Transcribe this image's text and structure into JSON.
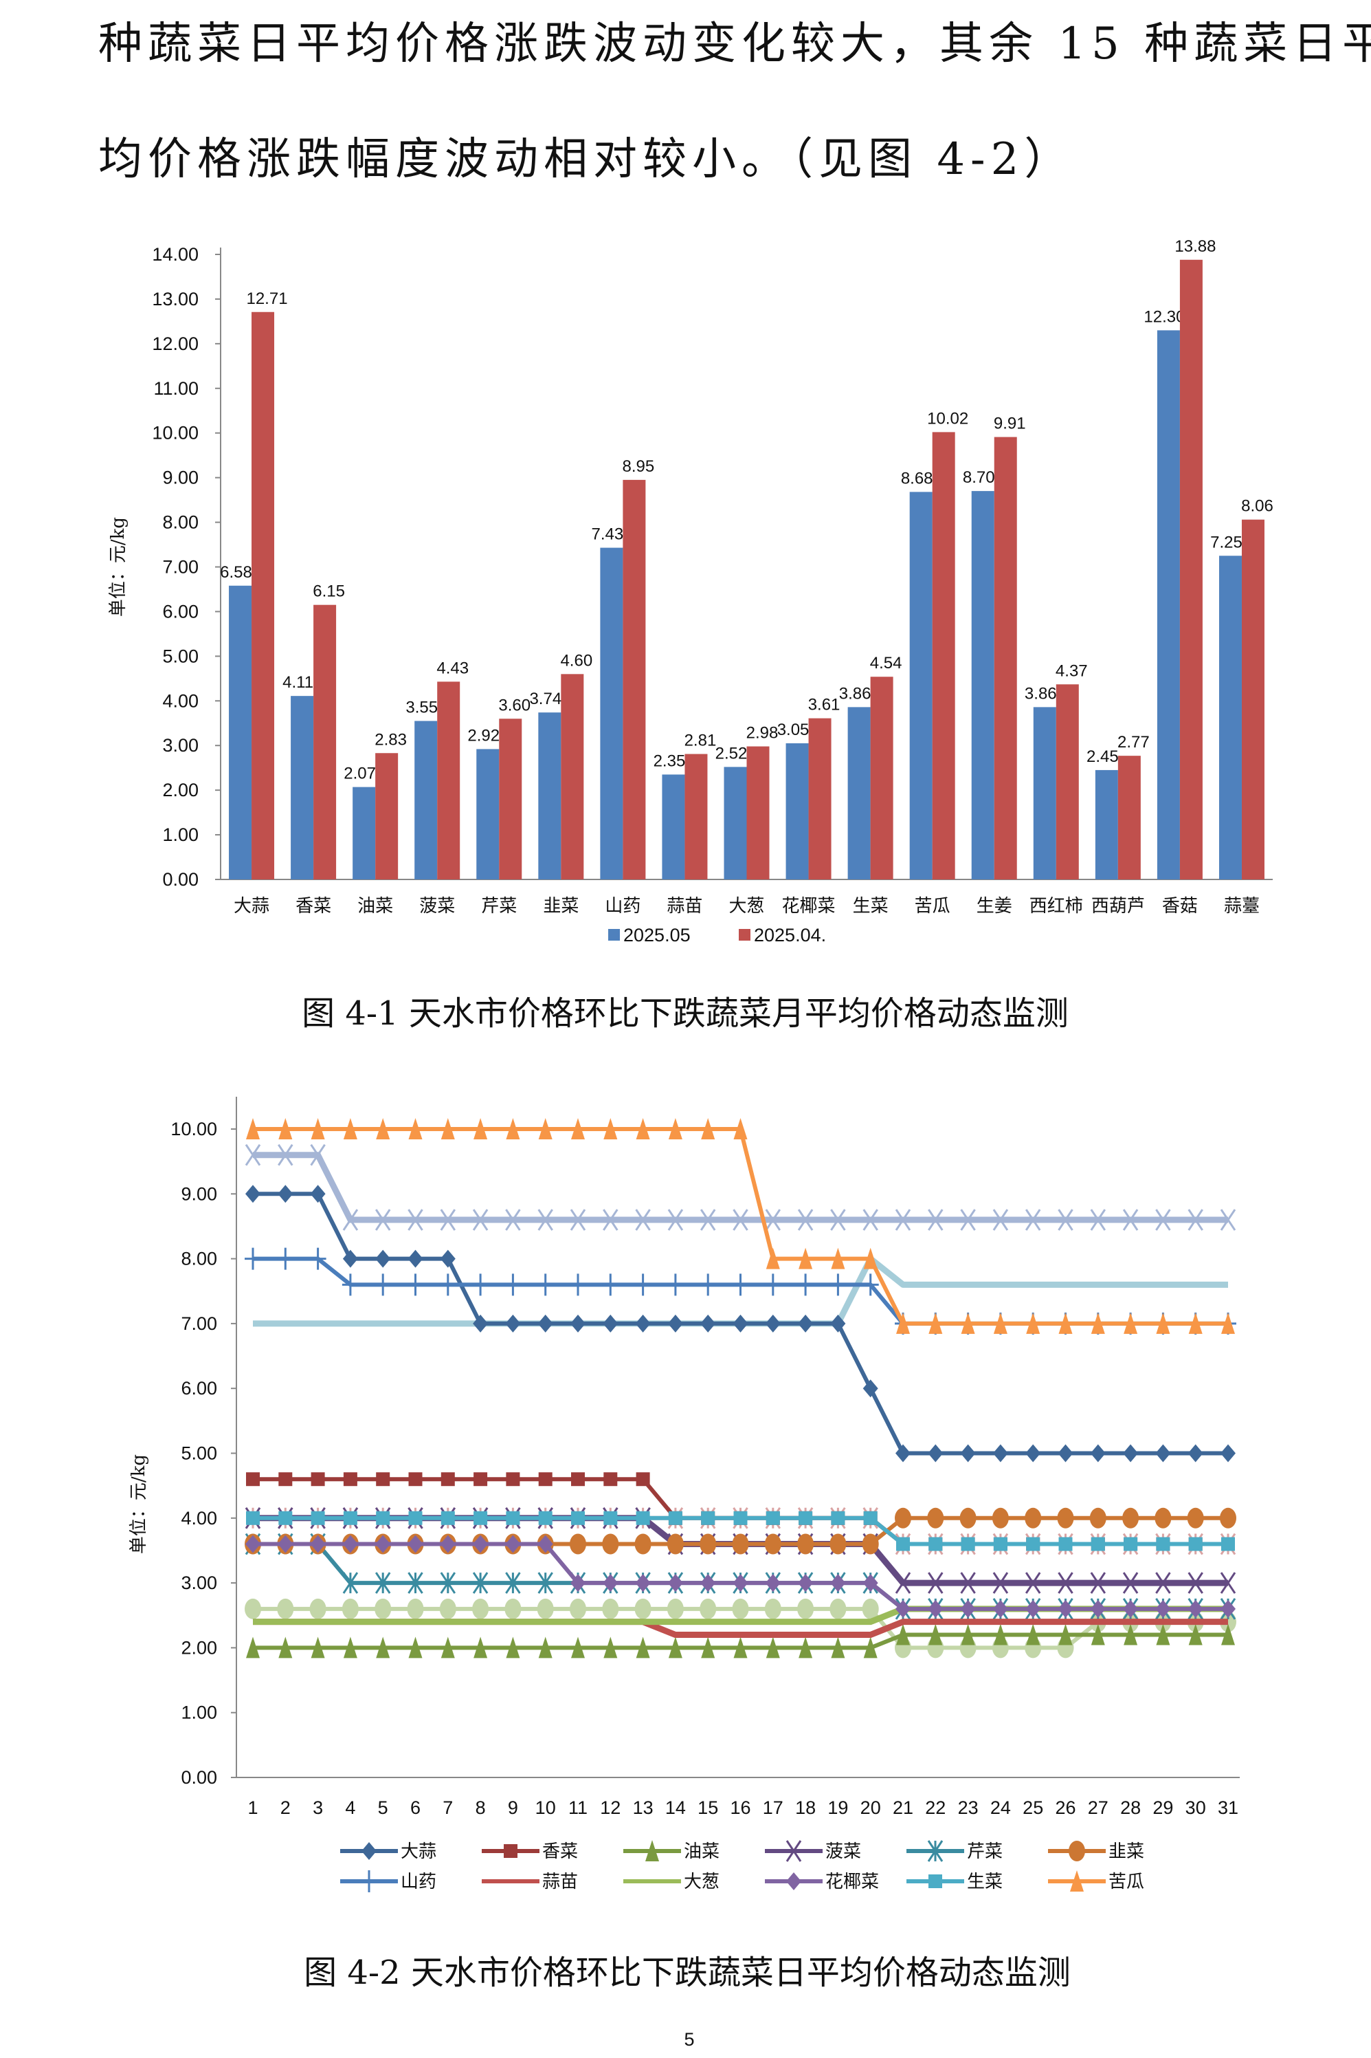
{
  "paragraph": {
    "line1": "种蔬菜日平均价格涨跌波动变化较大，其余 15 种蔬菜日平",
    "line2": "均价格涨跌幅度波动相对较小。（见图 4-2）"
  },
  "page_number": "5",
  "chart_data": [
    {
      "type": "bar",
      "title": "图 4-1    天水市价格环比下跌蔬菜月平均价格动态监测",
      "ylabel": "单位：元/kg",
      "xlabel": "",
      "ylim": [
        0,
        14
      ],
      "yticks": [
        "0.00",
        "1.00",
        "2.00",
        "3.00",
        "4.00",
        "5.00",
        "6.00",
        "7.00",
        "8.00",
        "9.00",
        "10.00",
        "11.00",
        "12.00",
        "13.00",
        "14.00"
      ],
      "grid": false,
      "legend": "bottom",
      "categories": [
        "大蒜",
        "香菜",
        "油菜",
        "菠菜",
        "芹菜",
        "韭菜",
        "山药",
        "蒜苗",
        "大葱",
        "花椰菜",
        "生菜",
        "苦瓜",
        "生姜",
        "西红柿",
        "西葫芦",
        "香菇",
        "蒜薹"
      ],
      "series": [
        {
          "name": "2025.05",
          "color": "#4f81bd",
          "values": [
            6.58,
            4.11,
            2.07,
            3.55,
            2.92,
            3.74,
            7.43,
            2.35,
            2.52,
            3.05,
            3.86,
            8.68,
            8.7,
            3.86,
            2.45,
            12.3,
            7.25
          ]
        },
        {
          "name": "2025.04.",
          "color": "#c0504d",
          "values": [
            12.71,
            6.15,
            2.83,
            4.43,
            3.6,
            4.6,
            8.95,
            2.81,
            2.98,
            3.61,
            4.54,
            10.02,
            9.91,
            4.37,
            2.77,
            13.88,
            8.06
          ]
        }
      ]
    },
    {
      "type": "line",
      "title": "图 4-2  天水市价格环比下跌蔬菜日平均价格动态监测",
      "ylabel": "单位：元/kg",
      "xlabel": "",
      "ylim": [
        0,
        10
      ],
      "yticks": [
        "0.00",
        "1.00",
        "2.00",
        "3.00",
        "4.00",
        "5.00",
        "6.00",
        "7.00",
        "8.00",
        "9.00",
        "10.00"
      ],
      "grid": false,
      "legend": "bottom",
      "x": [
        1,
        2,
        3,
        4,
        5,
        6,
        7,
        8,
        9,
        10,
        11,
        12,
        13,
        14,
        15,
        16,
        17,
        18,
        19,
        20,
        21,
        22,
        23,
        24,
        25,
        26,
        27,
        28,
        29,
        30,
        31
      ],
      "series": [
        {
          "name": "",
          "color": "#a5b5d5",
          "marker": "x",
          "values": [
            9.6,
            9.6,
            9.6,
            8.6,
            8.6,
            8.6,
            8.6,
            8.6,
            8.6,
            8.6,
            8.6,
            8.6,
            8.6,
            8.6,
            8.6,
            8.6,
            8.6,
            8.6,
            8.6,
            8.6,
            8.6,
            8.6,
            8.6,
            8.6,
            8.6,
            8.6,
            8.6,
            8.6,
            8.6,
            8.6,
            8.6
          ]
        },
        {
          "name": "",
          "color": "#a5cdd9",
          "marker": "none",
          "values": [
            7,
            7,
            7,
            7,
            7,
            7,
            7,
            7,
            7,
            7,
            7,
            7,
            7,
            7,
            7,
            7,
            7,
            7,
            7,
            8,
            7.6,
            7.6,
            7.6,
            7.6,
            7.6,
            7.6,
            7.6,
            7.6,
            7.6,
            7.6,
            7.6
          ]
        },
        {
          "name": "",
          "color": "#c3d6a8",
          "marker": "circle",
          "values": [
            2.6,
            2.6,
            2.6,
            2.6,
            2.6,
            2.6,
            2.6,
            2.6,
            2.6,
            2.6,
            2.6,
            2.6,
            2.6,
            2.6,
            2.6,
            2.6,
            2.6,
            2.6,
            2.6,
            2.6,
            2.0,
            2.0,
            2.0,
            2.0,
            2.0,
            2.0,
            2.4,
            2.4,
            2.4,
            2.4,
            2.4
          ]
        },
        {
          "name": "",
          "color": "#d9a3a3",
          "marker": "star",
          "values": [
            4,
            4,
            4,
            4,
            4,
            4,
            4,
            4,
            4,
            4,
            4,
            4,
            4,
            4,
            4,
            4,
            4,
            4,
            4,
            4,
            3.6,
            3.6,
            3.6,
            3.6,
            3.6,
            3.6,
            3.6,
            3.6,
            3.6,
            3.6,
            3.6
          ]
        },
        {
          "name": "大蒜",
          "color": "#3e6797",
          "marker": "diamond",
          "values": [
            9,
            9,
            9,
            8,
            8,
            8,
            8,
            7,
            7,
            7,
            7,
            7,
            7,
            7,
            7,
            7,
            7,
            7,
            7,
            6,
            5,
            5,
            5,
            5,
            5,
            5,
            5,
            5,
            5,
            5,
            5
          ]
        },
        {
          "name": "香菜",
          "color": "#9c3b39",
          "marker": "square",
          "values": [
            4.6,
            4.6,
            4.6,
            4.6,
            4.6,
            4.6,
            4.6,
            4.6,
            4.6,
            4.6,
            4.6,
            4.6,
            4.6,
            4.0,
            4.0,
            4.0,
            4.0,
            4.0,
            4.0,
            4.0,
            3.6,
            3.6,
            3.6,
            3.6,
            3.6,
            3.6,
            3.6,
            3.6,
            3.6,
            3.6,
            3.6
          ]
        },
        {
          "name": "油菜",
          "color": "#7a9a40",
          "marker": "triangle",
          "values": [
            2,
            2,
            2,
            2,
            2,
            2,
            2,
            2,
            2,
            2,
            2,
            2,
            2,
            2,
            2,
            2,
            2,
            2,
            2,
            2,
            2.2,
            2.2,
            2.2,
            2.2,
            2.2,
            2.2,
            2.2,
            2.2,
            2.2,
            2.2,
            2.2
          ]
        },
        {
          "name": "菠菜",
          "color": "#634a82",
          "marker": "x",
          "values": [
            4,
            4,
            4,
            4,
            4,
            4,
            4,
            4,
            4,
            4,
            4,
            4,
            4,
            3.6,
            3.6,
            3.6,
            3.6,
            3.6,
            3.6,
            3.6,
            3,
            3,
            3,
            3,
            3,
            3,
            3,
            3,
            3,
            3,
            3
          ]
        },
        {
          "name": "芹菜",
          "color": "#3a8ba0",
          "marker": "star",
          "values": [
            3.6,
            3.6,
            3.6,
            3,
            3,
            3,
            3,
            3,
            3,
            3,
            3,
            3,
            3,
            3,
            3,
            3,
            3,
            3,
            3,
            3,
            2.6,
            2.6,
            2.6,
            2.6,
            2.6,
            2.6,
            2.6,
            2.6,
            2.6,
            2.6,
            2.6
          ]
        },
        {
          "name": "韭菜",
          "color": "#cc7733",
          "marker": "circle",
          "values": [
            3.6,
            3.6,
            3.6,
            3.6,
            3.6,
            3.6,
            3.6,
            3.6,
            3.6,
            3.6,
            3.6,
            3.6,
            3.6,
            3.6,
            3.6,
            3.6,
            3.6,
            3.6,
            3.6,
            3.6,
            4,
            4,
            4,
            4,
            4,
            4,
            4,
            4,
            4,
            4,
            4
          ]
        },
        {
          "name": "山药",
          "color": "#4a7dbb",
          "marker": "plus",
          "values": [
            8,
            8,
            8,
            7.6,
            7.6,
            7.6,
            7.6,
            7.6,
            7.6,
            7.6,
            7.6,
            7.6,
            7.6,
            7.6,
            7.6,
            7.6,
            7.6,
            7.6,
            7.6,
            7.6,
            7,
            7,
            7,
            7,
            7,
            7,
            7,
            7,
            7,
            7,
            7
          ]
        },
        {
          "name": "蒜苗",
          "color": "#c0504d",
          "marker": "none",
          "values": [
            2.4,
            2.4,
            2.4,
            2.4,
            2.4,
            2.4,
            2.4,
            2.4,
            2.4,
            2.4,
            2.4,
            2.4,
            2.4,
            2.2,
            2.2,
            2.2,
            2.2,
            2.2,
            2.2,
            2.2,
            2.4,
            2.4,
            2.4,
            2.4,
            2.4,
            2.4,
            2.4,
            2.4,
            2.4,
            2.4,
            2.4
          ]
        },
        {
          "name": "大葱",
          "color": "#9bbb59",
          "marker": "none",
          "values": [
            2.4,
            2.4,
            2.4,
            2.4,
            2.4,
            2.4,
            2.4,
            2.4,
            2.4,
            2.4,
            2.4,
            2.4,
            2.4,
            2.4,
            2.4,
            2.4,
            2.4,
            2.4,
            2.4,
            2.4,
            2.6,
            2.6,
            2.6,
            2.6,
            2.6,
            2.6,
            2.6,
            2.6,
            2.6,
            2.6,
            2.6
          ]
        },
        {
          "name": "花椰菜",
          "color": "#8064a2",
          "marker": "diamond",
          "values": [
            3.6,
            3.6,
            3.6,
            3.6,
            3.6,
            3.6,
            3.6,
            3.6,
            3.6,
            3.6,
            3,
            3,
            3,
            3,
            3,
            3,
            3,
            3,
            3,
            3,
            2.6,
            2.6,
            2.6,
            2.6,
            2.6,
            2.6,
            2.6,
            2.6,
            2.6,
            2.6,
            2.6
          ]
        },
        {
          "name": "生菜",
          "color": "#4bacc6",
          "marker": "square",
          "values": [
            4,
            4,
            4,
            4,
            4,
            4,
            4,
            4,
            4,
            4,
            4,
            4,
            4,
            4,
            4,
            4,
            4,
            4,
            4,
            4,
            3.6,
            3.6,
            3.6,
            3.6,
            3.6,
            3.6,
            3.6,
            3.6,
            3.6,
            3.6,
            3.6
          ]
        },
        {
          "name": "苦瓜",
          "color": "#f79646",
          "marker": "triangle",
          "values": [
            10,
            10,
            10,
            10,
            10,
            10,
            10,
            10,
            10,
            10,
            10,
            10,
            10,
            10,
            10,
            10,
            8,
            8,
            8,
            8,
            7,
            7,
            7,
            7,
            7,
            7,
            7,
            7,
            7,
            7,
            7
          ]
        }
      ]
    }
  ]
}
